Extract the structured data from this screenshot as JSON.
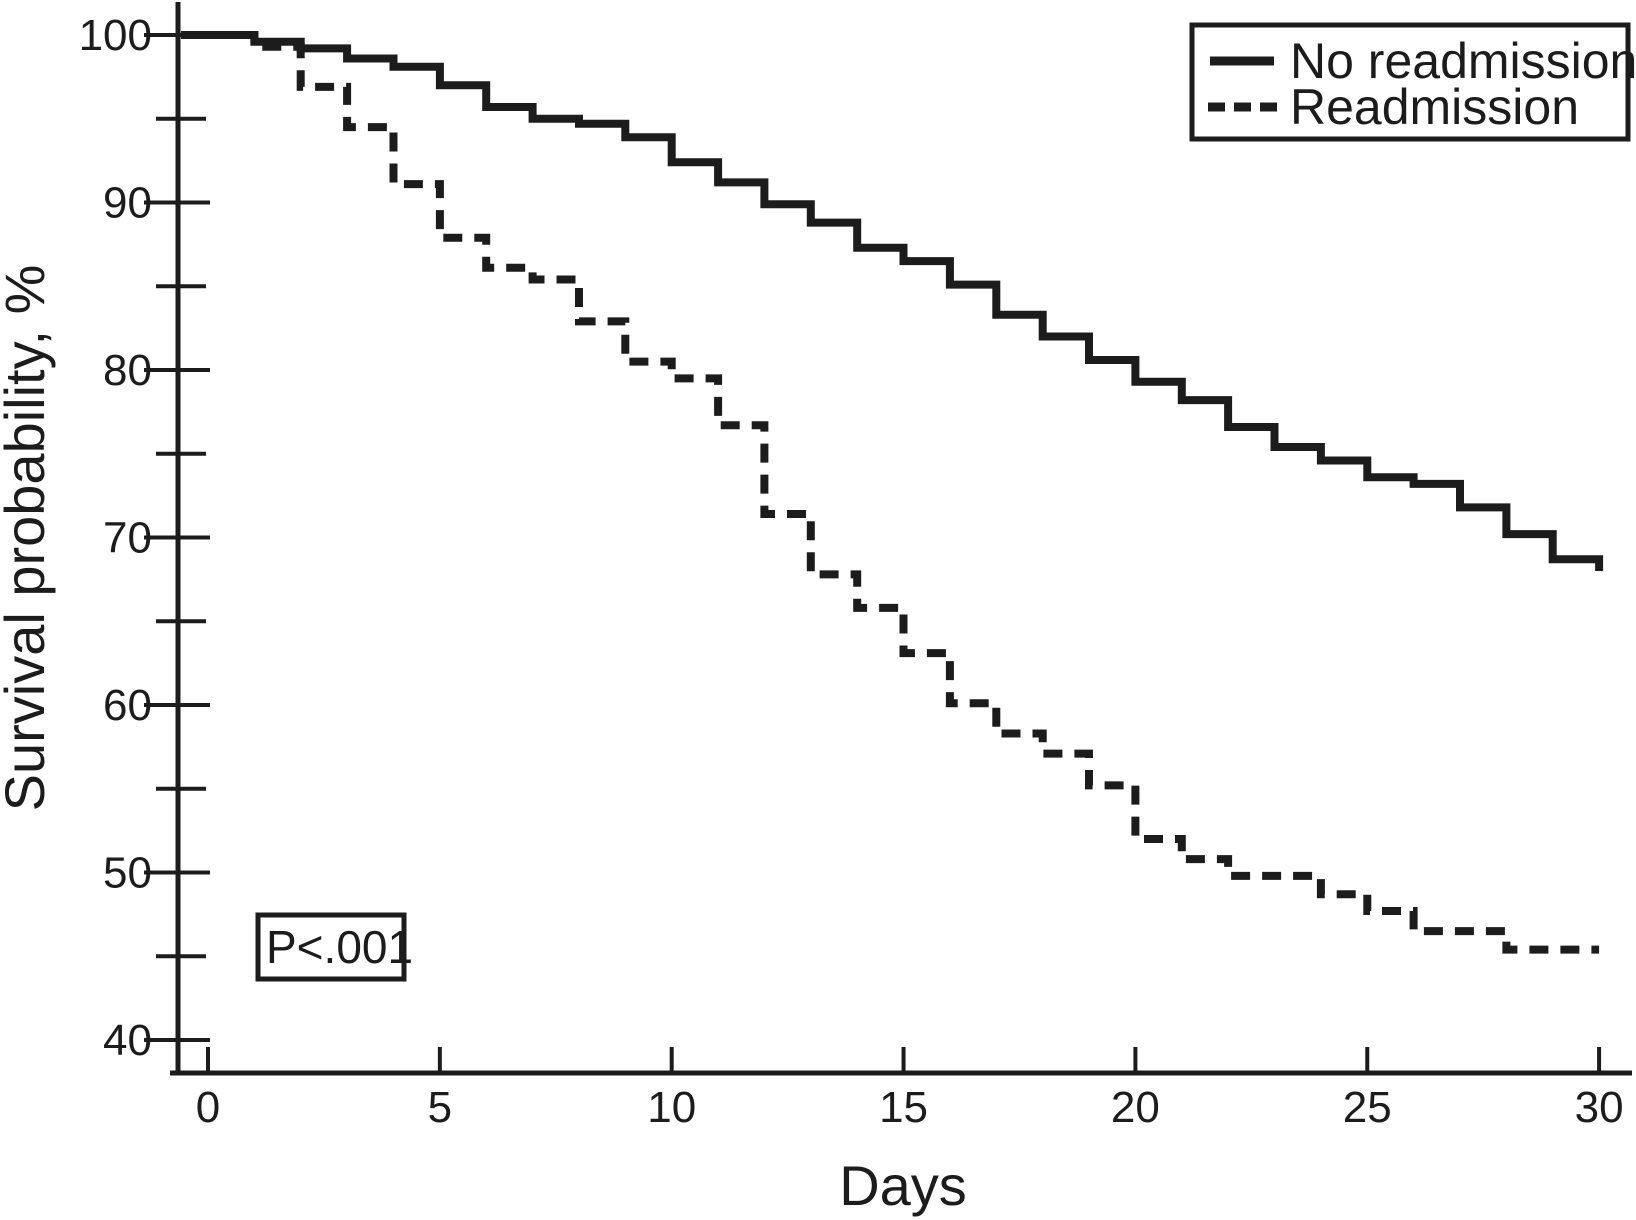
{
  "chart_data": {
    "type": "line",
    "subtype": "kaplan-meier-step-curves",
    "title": "",
    "xlabel": "Days",
    "ylabel": "Survival probability, %",
    "xlim": [
      0,
      30
    ],
    "ylim": [
      40,
      100
    ],
    "xticks": [
      0,
      5,
      10,
      15,
      20,
      25,
      30
    ],
    "yticks_major": [
      40,
      50,
      60,
      70,
      80,
      90,
      100
    ],
    "yticks_minor": [
      45,
      55,
      65,
      75,
      85,
      95
    ],
    "grid": false,
    "legend_position": "top-right",
    "annotation": "P<.001",
    "colors": {
      "line": "#1c1c1c",
      "background": "#ffffff"
    },
    "series": [
      {
        "name": "No readmission",
        "style": "solid",
        "points": [
          [
            0,
            100
          ],
          [
            1,
            99.6
          ],
          [
            2,
            99.2
          ],
          [
            3,
            98.6
          ],
          [
            4,
            98.1
          ],
          [
            5,
            97.0
          ],
          [
            6,
            95.7
          ],
          [
            7,
            95.0
          ],
          [
            8,
            94.7
          ],
          [
            9,
            93.9
          ],
          [
            10,
            92.4
          ],
          [
            11,
            91.2
          ],
          [
            12,
            89.9
          ],
          [
            13,
            88.8
          ],
          [
            14,
            87.3
          ],
          [
            15,
            86.5
          ],
          [
            16,
            85.1
          ],
          [
            17,
            83.3
          ],
          [
            18,
            82.0
          ],
          [
            19,
            80.6
          ],
          [
            20,
            79.3
          ],
          [
            21,
            78.2
          ],
          [
            22,
            76.6
          ],
          [
            23,
            75.4
          ],
          [
            24,
            74.6
          ],
          [
            25,
            73.6
          ],
          [
            26,
            73.2
          ],
          [
            27,
            71.8
          ],
          [
            28,
            70.2
          ],
          [
            29,
            68.7
          ],
          [
            30,
            68.0
          ]
        ]
      },
      {
        "name": "Readmission",
        "style": "dashed",
        "points": [
          [
            0,
            100
          ],
          [
            1,
            99.3
          ],
          [
            2,
            96.9
          ],
          [
            3,
            94.5
          ],
          [
            4,
            91.1
          ],
          [
            5,
            87.9
          ],
          [
            6,
            86.1
          ],
          [
            7,
            85.4
          ],
          [
            8,
            82.9
          ],
          [
            9,
            80.5
          ],
          [
            10,
            79.5
          ],
          [
            11,
            76.7
          ],
          [
            12,
            71.4
          ],
          [
            13,
            67.8
          ],
          [
            14,
            65.8
          ],
          [
            15,
            63.1
          ],
          [
            16,
            60.1
          ],
          [
            17,
            58.3
          ],
          [
            18,
            57.1
          ],
          [
            19,
            55.2
          ],
          [
            20,
            52.0
          ],
          [
            21,
            50.8
          ],
          [
            22,
            49.8
          ],
          [
            24,
            48.7
          ],
          [
            25,
            47.7
          ],
          [
            26,
            46.5
          ],
          [
            28,
            45.4
          ],
          [
            30,
            45.4
          ]
        ]
      }
    ]
  },
  "legend": {
    "items": [
      {
        "label": "No readmission",
        "line_style": "solid"
      },
      {
        "label": "Readmission",
        "line_style": "dashed"
      }
    ]
  },
  "annotation": {
    "text": "P<.001"
  }
}
